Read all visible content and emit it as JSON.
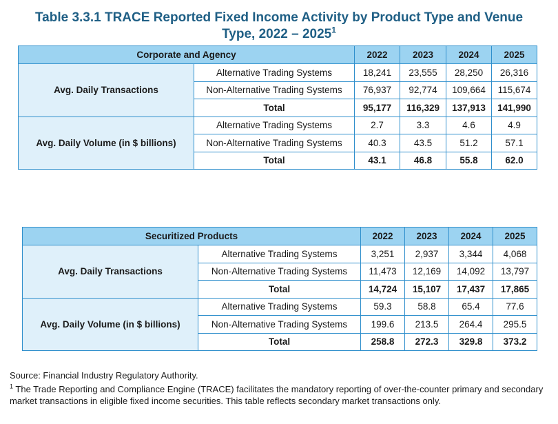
{
  "title": {
    "text": "Table 3.3.1 TRACE Reported Fixed Income Activity by Product Type and Venue Type, 2022 – 2025",
    "sup": "1"
  },
  "tables": [
    {
      "header": "Corporate and Agency",
      "years": [
        "2022",
        "2023",
        "2024",
        "2025"
      ],
      "groups": [
        {
          "label": "Avg. Daily Transactions",
          "rows": [
            {
              "label": "Alternative Trading Systems",
              "values": [
                "18,241",
                "23,555",
                "28,250",
                "26,316"
              ]
            },
            {
              "label": "Non-Alternative Trading Systems",
              "values": [
                "76,937",
                "92,774",
                "109,664",
                "115,674"
              ]
            },
            {
              "label": "Total",
              "values": [
                "95,177",
                "116,329",
                "137,913",
                "141,990"
              ]
            }
          ]
        },
        {
          "label": "Avg. Daily Volume (in $ billions)",
          "rows": [
            {
              "label": "Alternative Trading Systems",
              "values": [
                "2.7",
                "3.3",
                "4.6",
                "4.9"
              ]
            },
            {
              "label": "Non-Alternative Trading Systems",
              "values": [
                "40.3",
                "43.5",
                "51.2",
                "57.1"
              ]
            },
            {
              "label": "Total",
              "values": [
                "43.1",
                "46.8",
                "55.8",
                "62.0"
              ]
            }
          ]
        }
      ]
    },
    {
      "header": "Securitized Products",
      "years": [
        "2022",
        "2023",
        "2024",
        "2025"
      ],
      "groups": [
        {
          "label": "Avg. Daily Transactions",
          "rows": [
            {
              "label": "Alternative Trading Systems",
              "values": [
                "3,251",
                "2,937",
                "3,344",
                "4,068"
              ]
            },
            {
              "label": "Non-Alternative Trading Systems",
              "values": [
                "11,473",
                "12,169",
                "14,092",
                "13,797"
              ]
            },
            {
              "label": "Total",
              "values": [
                "14,724",
                "15,107",
                "17,437",
                "17,865"
              ]
            }
          ]
        },
        {
          "label": "Avg. Daily Volume (in $ billions)",
          "rows": [
            {
              "label": "Alternative Trading Systems",
              "values": [
                "59.3",
                "58.8",
                "65.4",
                "77.6"
              ]
            },
            {
              "label": "Non-Alternative Trading Systems",
              "values": [
                "199.6",
                "213.5",
                "264.4",
                "295.5"
              ]
            },
            {
              "label": "Total",
              "values": [
                "258.8",
                "272.3",
                "329.8",
                "373.2"
              ]
            }
          ]
        }
      ]
    }
  ],
  "source": "Source: Financial Industry Regulatory Authority.",
  "footnote": {
    "mark": "1",
    "text": " The Trade Reporting and Compliance Engine (TRACE) facilitates the mandatory reporting of over-the-counter primary and secondary market transactions in eligible fixed income securities. This table reflects secondary market transactions only."
  },
  "colors": {
    "title": "#1f5f85",
    "border": "#2f8fcc",
    "header_bg": "#9cd3f1",
    "group_bg": "#dff0fa"
  }
}
